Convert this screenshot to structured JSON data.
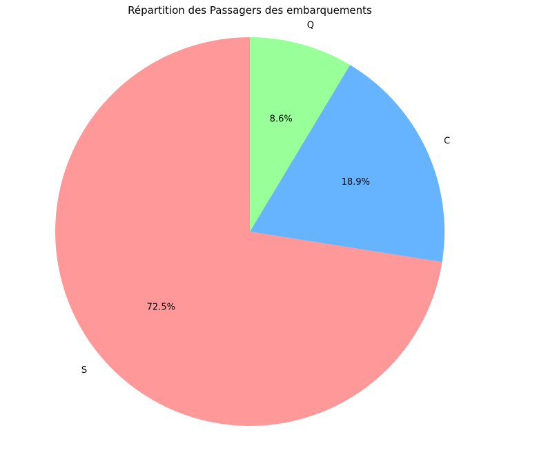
{
  "chart_data": {
    "type": "pie",
    "title": "Répartition des Passagers des embarquements",
    "start_angle_deg": 90,
    "direction": "counterclockwise",
    "slices": [
      {
        "label": "S",
        "value": 72.5,
        "pct_label": "72.5%",
        "color": "#ff9999"
      },
      {
        "label": "C",
        "value": 18.9,
        "pct_label": "18.9%",
        "color": "#66b3ff"
      },
      {
        "label": "Q",
        "value": 8.6,
        "pct_label": "8.6%",
        "color": "#99ff99"
      }
    ]
  }
}
